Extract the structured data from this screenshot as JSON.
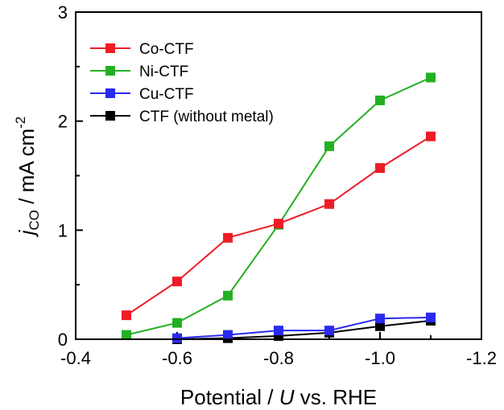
{
  "chart_data": {
    "type": "line",
    "xlabel": {
      "pre": "Potential / ",
      "italic": "U",
      "post": " vs. RHE"
    },
    "ylabel": {
      "italic": "j",
      "sub": "CO",
      "unit": " / mA cm",
      "sup": "-2"
    },
    "xlim": [
      -0.4,
      -1.2
    ],
    "ylim": [
      0,
      3
    ],
    "x_ticks": [
      -0.4,
      -0.6,
      -0.8,
      -1.0,
      -1.2
    ],
    "x_tick_labels": [
      "-0.4",
      "-0.6",
      "-0.8",
      "-1.0",
      "-1.2"
    ],
    "y_ticks": [
      0,
      1,
      2,
      3
    ],
    "y_tick_labels": [
      "0",
      "1",
      "2",
      "3"
    ],
    "grid": false,
    "legend_position": "top-left",
    "series": [
      {
        "name": "Co-CTF",
        "color": "#ee1c25",
        "x": [
          -0.5,
          -0.6,
          -0.7,
          -0.8,
          -0.9,
          -1.0,
          -1.1
        ],
        "y": [
          0.22,
          0.53,
          0.93,
          1.06,
          1.24,
          1.57,
          1.86
        ]
      },
      {
        "name": "Ni-CTF",
        "color": "#22b022",
        "x": [
          -0.5,
          -0.6,
          -0.7,
          -0.8,
          -0.9,
          -1.0,
          -1.1
        ],
        "y": [
          0.04,
          0.15,
          0.4,
          1.05,
          1.77,
          2.19,
          2.4
        ]
      },
      {
        "name": "Cu-CTF",
        "color": "#2a2af0",
        "x": [
          -0.6,
          -0.7,
          -0.8,
          -0.9,
          -1.0,
          -1.1
        ],
        "y": [
          0.01,
          0.04,
          0.08,
          0.08,
          0.19,
          0.2
        ]
      },
      {
        "name": "CTF (without metal)",
        "color": "#000000",
        "x": [
          -0.6,
          -0.7,
          -0.8,
          -0.9,
          -1.0,
          -1.1
        ],
        "y": [
          0.0,
          0.01,
          0.03,
          0.06,
          0.12,
          0.17
        ]
      }
    ]
  }
}
